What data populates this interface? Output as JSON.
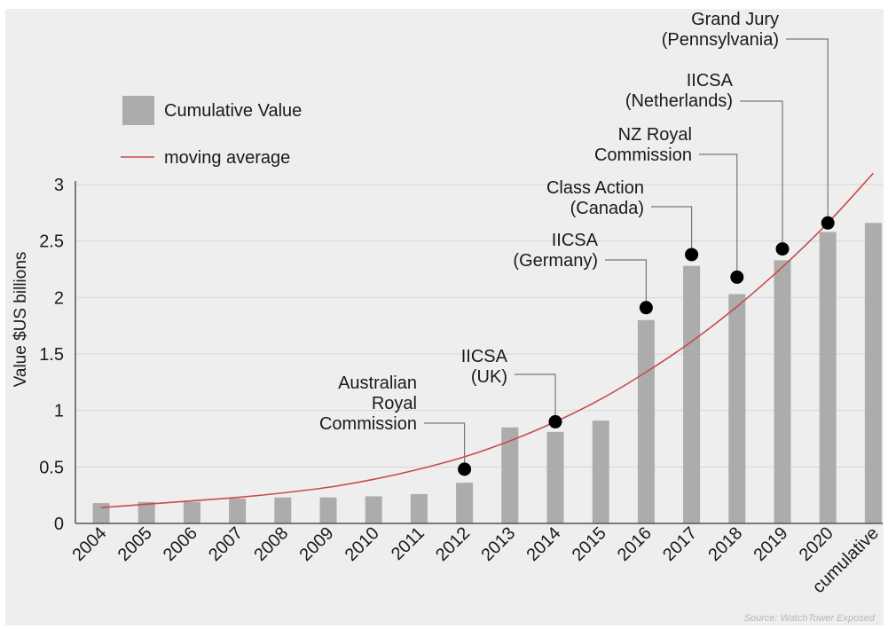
{
  "chart_data": {
    "type": "bar",
    "ylabel": "Value $US billions",
    "ylim": [
      0,
      3
    ],
    "yticks": [
      "0",
      "0.5",
      "1",
      "1.5",
      "2",
      "2.5",
      "3"
    ],
    "categories": [
      "2004",
      "2005",
      "2006",
      "2007",
      "2008",
      "2009",
      "2010",
      "2011",
      "2012",
      "2013",
      "2014",
      "2015",
      "2016",
      "2017",
      "2018",
      "2019",
      "2020",
      "cumulative"
    ],
    "series": [
      {
        "name": "Cumulative Value",
        "type": "bar",
        "color": "#acacac",
        "values": [
          0.18,
          0.19,
          0.19,
          0.22,
          0.23,
          0.23,
          0.24,
          0.26,
          0.36,
          0.85,
          0.81,
          0.91,
          1.8,
          2.28,
          2.03,
          2.33,
          2.58,
          2.66
        ]
      },
      {
        "name": "moving average",
        "type": "line",
        "color": "#c84b4b",
        "x": [
          0,
          1,
          2,
          3,
          4,
          5,
          6,
          7,
          8,
          9,
          10,
          11,
          12,
          13,
          14,
          15,
          16,
          17
        ],
        "values": [
          0.14,
          0.17,
          0.2,
          0.23,
          0.27,
          0.32,
          0.39,
          0.48,
          0.59,
          0.73,
          0.9,
          1.1,
          1.34,
          1.61,
          1.92,
          2.27,
          2.66,
          3.1
        ]
      }
    ],
    "events": [
      {
        "label": [
          "Australian",
          "Royal",
          "Commission"
        ],
        "category": "2012",
        "value": 0.48
      },
      {
        "label": [
          "IICSA",
          "(UK)"
        ],
        "category": "2014",
        "value": 0.9
      },
      {
        "label": [
          "IICSA",
          "(Germany)"
        ],
        "category": "2016",
        "value": 1.91
      },
      {
        "label": [
          "Class Action",
          "(Canada)"
        ],
        "category": "2017",
        "value": 2.38
      },
      {
        "label": [
          "NZ Royal",
          "Commission"
        ],
        "category": "2018",
        "value": 2.18
      },
      {
        "label": [
          "IICSA",
          "(Netherlands)"
        ],
        "category": "2019",
        "value": 2.43
      },
      {
        "label": [
          "Grand Jury",
          "(Pennsylvania)"
        ],
        "category": "2020",
        "value": 2.66
      }
    ],
    "legend": [
      {
        "label": "Cumulative Value",
        "kind": "bar"
      },
      {
        "label": "moving average",
        "kind": "line"
      }
    ],
    "legend_position": "top-left",
    "source": "Source: WatchTower Exposed"
  }
}
